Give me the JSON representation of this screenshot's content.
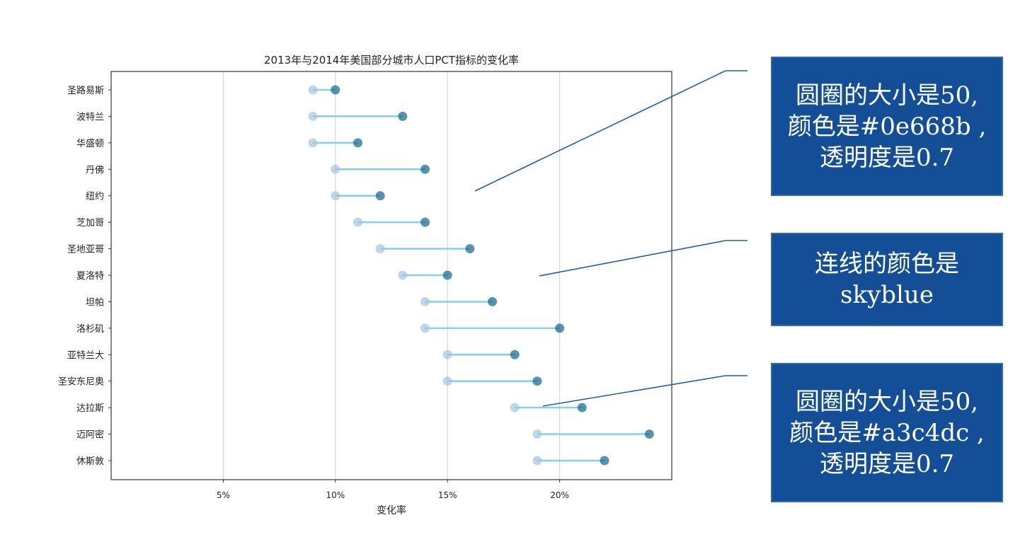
{
  "chart_data": {
    "type": "dumbbell",
    "title": "2013年与2014年美国部分城市人口PCT指标的变化率",
    "xlabel": "变化率",
    "ylabel": "",
    "xlim": [
      0.0,
      0.25
    ],
    "xticks": [
      0.05,
      0.1,
      0.15,
      0.2
    ],
    "xtick_labels": [
      "5%",
      "10%",
      "15%",
      "20%"
    ],
    "grid": "vertical",
    "categories": [
      "圣路易斯",
      "波特兰",
      "华盛顿",
      "丹佛",
      "纽约",
      "芝加哥",
      "圣地亚哥",
      "夏洛特",
      "坦帕",
      "洛杉矶",
      "亚特兰大",
      "圣安东尼奥",
      "达拉斯",
      "迈阿密",
      "休斯敦"
    ],
    "series": [
      {
        "values": [
          0.09,
          0.09,
          0.09,
          0.1,
          0.1,
          0.11,
          0.12,
          0.13,
          0.14,
          0.14,
          0.15,
          0.15,
          0.18,
          0.19,
          0.19
        ],
        "color": "#a3c4dc",
        "alpha": 0.7
      },
      {
        "values": [
          0.1,
          0.13,
          0.11,
          0.14,
          0.12,
          0.14,
          0.16,
          0.15,
          0.17,
          0.2,
          0.18,
          0.19,
          0.21,
          0.24,
          0.22
        ],
        "color": "#0e668b",
        "alpha": 0.7
      }
    ],
    "line_color": "skyblue"
  },
  "annotations": [
    {
      "lines": [
        "圆圈的大小是50,",
        "颜色是#0e668b ,",
        "透明度是0.7"
      ]
    },
    {
      "lines": [
        "连线的颜色是",
        "skyblue"
      ]
    },
    {
      "lines": [
        "圆圈的大小是50,",
        "颜色是#a3c4dc ,",
        "透明度是0.7"
      ]
    }
  ],
  "colors": {
    "annotation_bg": "#134e97",
    "pointer_line": "#1f5fa8",
    "grid": "#d9d9d9"
  }
}
